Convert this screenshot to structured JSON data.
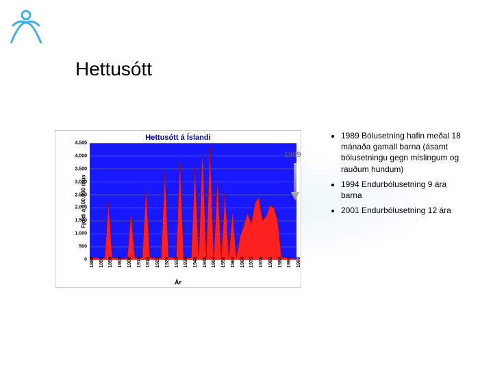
{
  "slide": {
    "title": "Hettusótt",
    "background_gradient": {
      "center_color": "#e8f4fa",
      "outer_color": "#ffffff"
    }
  },
  "logo": {
    "stroke_color": "#3faee8",
    "fill_color": "#ffffff"
  },
  "chart": {
    "type": "area",
    "title": "Hettusótt á Íslandi",
    "title_color": "#000080",
    "title_fontsize": 11,
    "plot_background": "#1818ff",
    "gridline_color": "#9090c0",
    "series_fill": "#ff2020",
    "series_stroke": "#a00000",
    "x_label": "Ár",
    "y_label": "Fjöldi á 100.000 íbúa",
    "label_fontsize": 8,
    "tick_fontsize": 7,
    "xlim": [
      1888,
      1998
    ],
    "ylim": [
      0,
      4500
    ],
    "y_ticks": [
      0,
      500,
      1000,
      1500,
      2000,
      2500,
      3000,
      3500,
      4000,
      4500
    ],
    "y_tick_labels": [
      "0",
      "500",
      "1.000",
      "1.500",
      "2.000",
      "2.500",
      "3.000",
      "3.500",
      "4.000",
      "4.500"
    ],
    "x_ticks": [
      1888,
      1893,
      1898,
      1903,
      1908,
      1913,
      1918,
      1923,
      1928,
      1933,
      1938,
      1943,
      1948,
      1953,
      1958,
      1963,
      1968,
      1973,
      1978,
      1983,
      1988,
      1993,
      1998
    ],
    "x_tick_labels": [
      "1888",
      "1893",
      "1898",
      "1903",
      "1908",
      "1913",
      "1918",
      "1923",
      "1928",
      "1933",
      "1938",
      "1943",
      "1948",
      "1953",
      "1958",
      "1963",
      "1968",
      "1973",
      "1978",
      "1983",
      "1988",
      "1993",
      "1998"
    ],
    "data": {
      "year": [
        1888,
        1890,
        1892,
        1894,
        1896,
        1898,
        1900,
        1902,
        1904,
        1906,
        1908,
        1910,
        1912,
        1914,
        1916,
        1918,
        1920,
        1922,
        1924,
        1926,
        1928,
        1930,
        1932,
        1934,
        1936,
        1938,
        1940,
        1942,
        1944,
        1946,
        1948,
        1950,
        1952,
        1954,
        1956,
        1958,
        1960,
        1962,
        1964,
        1966,
        1968,
        1970,
        1972,
        1974,
        1976,
        1978,
        1980,
        1982,
        1984,
        1986,
        1988,
        1990,
        1992,
        1994,
        1996,
        1998
      ],
      "value": [
        50,
        80,
        60,
        40,
        60,
        2200,
        80,
        60,
        40,
        50,
        60,
        1800,
        70,
        60,
        80,
        2800,
        90,
        60,
        70,
        60,
        3400,
        100,
        80,
        60,
        3800,
        90,
        70,
        80,
        3600,
        100,
        4300,
        90,
        4400,
        100,
        3100,
        90,
        2600,
        100,
        1900,
        80,
        900,
        1300,
        1800,
        1400,
        2200,
        2400,
        1500,
        1700,
        2100,
        2000,
        1500,
        100,
        80,
        60,
        50,
        40
      ]
    }
  },
  "annotation": {
    "label": "1989",
    "label_color": "#606060",
    "label_fontsize": 11,
    "arrow_color": "#808080"
  },
  "bullets": {
    "items": [
      "1989 Bólusetning hafin meðal 18 mánaða gamall barna (ásamt bólusetningu gegn mislingum og rauðum hundum)",
      "1994 Endurbólusetning 9 ára barna",
      "2001 Endurbólusetning 12 ára"
    ],
    "fontsize": 12,
    "color": "#000000"
  }
}
